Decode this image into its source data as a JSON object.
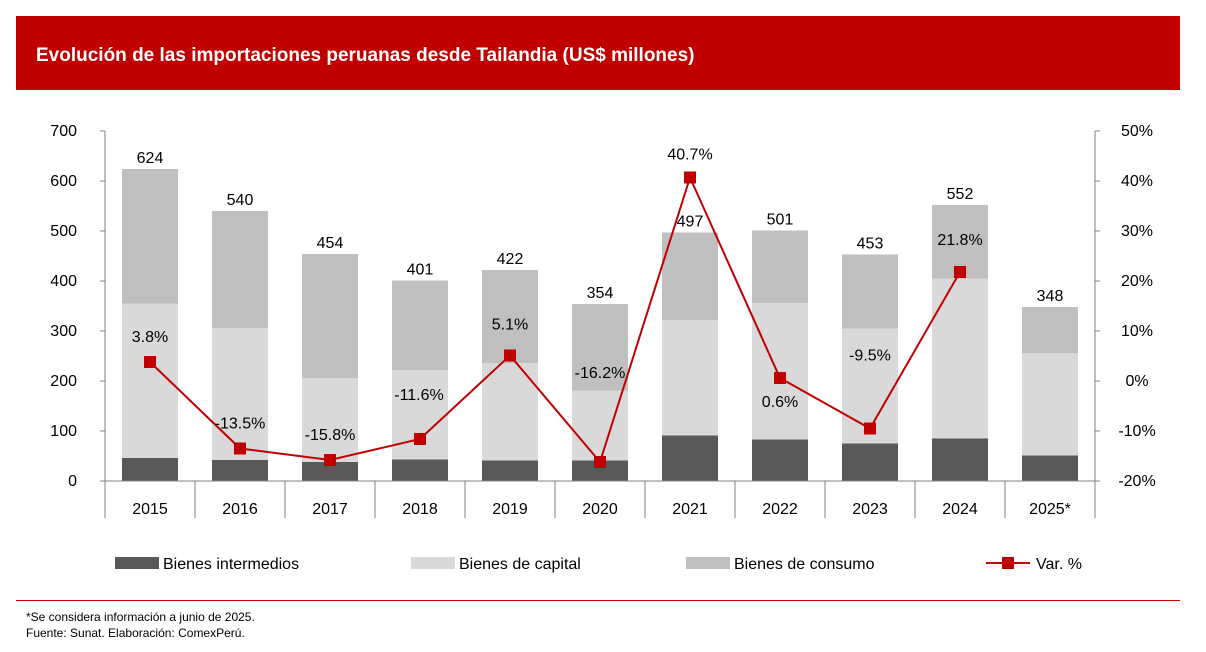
{
  "header": {
    "title": "Evolución de las importaciones peruanas desde Tailandia (US$ millones)"
  },
  "colors": {
    "header_bg": "#c00000",
    "intermedios": "#595959",
    "capital": "#d9d9d9",
    "consumo": "#bfbfbf",
    "line": "#c00000"
  },
  "chart_data": {
    "type": "bar",
    "stacked": true,
    "categories": [
      "2015",
      "2016",
      "2017",
      "2018",
      "2019",
      "2020",
      "2021",
      "2022",
      "2023",
      "2024",
      "2025*"
    ],
    "series": [
      {
        "name": "Bienes intermedios",
        "values": [
          46,
          42,
          38,
          43,
          41,
          41,
          91,
          83,
          75,
          85,
          51
        ]
      },
      {
        "name": "Bienes de capital",
        "values": [
          309,
          264,
          168,
          179,
          195,
          140,
          231,
          273,
          230,
          320,
          205
        ]
      },
      {
        "name": "Bienes de consumo",
        "values": [
          269,
          234,
          248,
          179,
          186,
          173,
          175,
          145,
          148,
          147,
          92
        ]
      }
    ],
    "totals": [
      624,
      540,
      454,
      401,
      422,
      354,
      497,
      501,
      453,
      552,
      348
    ],
    "total_labels": [
      "624",
      "540",
      "454",
      "401",
      "422",
      "354",
      "497",
      "501",
      "453",
      "552",
      "348"
    ],
    "line_series": {
      "name": "Var. %",
      "values": [
        3.8,
        -13.5,
        -15.8,
        -11.6,
        5.1,
        -16.2,
        40.7,
        0.6,
        -9.5,
        21.8,
        null
      ],
      "labels": [
        "3.8%",
        "-13.5%",
        "-15.8%",
        "-11.6%",
        "5.1%",
        "-16.2%",
        "40.7%",
        "0.6%",
        "-9.5%",
        "21.8%",
        ""
      ]
    },
    "y_left": {
      "ylim": [
        0,
        700
      ],
      "ticks": [
        "0",
        "100",
        "200",
        "300",
        "400",
        "500",
        "600",
        "700"
      ]
    },
    "y_right": {
      "ylim": [
        -20,
        50
      ],
      "ticks": [
        "-20%",
        "-10%",
        "0%",
        "10%",
        "20%",
        "30%",
        "40%",
        "50%"
      ]
    },
    "legend": {
      "position": "bottom",
      "items": [
        "Bienes intermedios",
        "Bienes de capital",
        "Bienes de consumo",
        "Var. %"
      ]
    },
    "grid": false
  },
  "footnotes": {
    "note": "*Se considera información a junio de 2025.",
    "source": "Fuente: Sunat. Elaboración: ComexPerú."
  }
}
